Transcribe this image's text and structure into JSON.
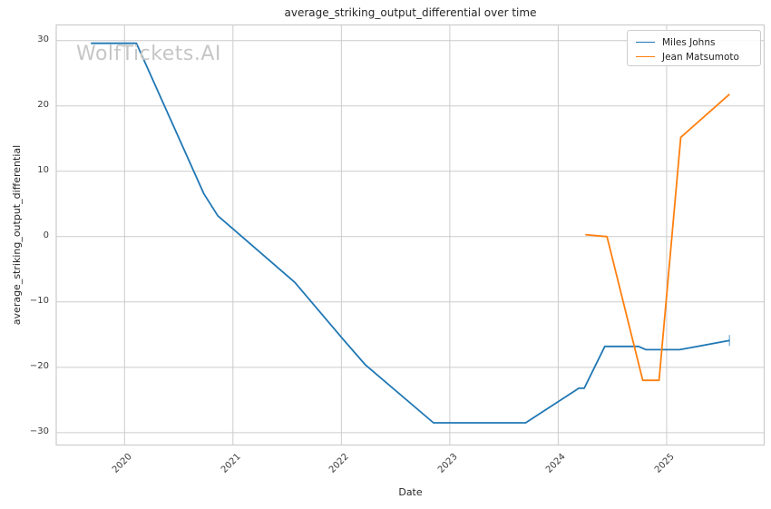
{
  "page": {
    "watermark": "WolfTickets.AI"
  },
  "chart_data": {
    "type": "line",
    "title": "average_striking_output_differential over time",
    "xlabel": "Date",
    "ylabel": "average_striking_output_differential",
    "grid": true,
    "legend_position": "upper right",
    "xlim": [
      2019.37,
      2025.9
    ],
    "ylim": [
      -31.9,
      32.4
    ],
    "x_ticks": [
      {
        "value": 2020,
        "label": "2020"
      },
      {
        "value": 2021,
        "label": "2021"
      },
      {
        "value": 2022,
        "label": "2022"
      },
      {
        "value": 2023,
        "label": "2023"
      },
      {
        "value": 2024,
        "label": "2024"
      },
      {
        "value": 2025,
        "label": "2025"
      }
    ],
    "y_ticks": [
      {
        "value": 30,
        "label": "30"
      },
      {
        "value": 20,
        "label": "20"
      },
      {
        "value": 10,
        "label": "10"
      },
      {
        "value": 0,
        "label": "0"
      },
      {
        "value": -10,
        "label": "−10"
      },
      {
        "value": -20,
        "label": "−20"
      },
      {
        "value": -30,
        "label": "−30"
      }
    ],
    "series": [
      {
        "name": "Miles Johns",
        "color": "#1f77b4",
        "end_cap": true,
        "x": [
          2019.69,
          2020.11,
          2020.73,
          2020.86,
          2021.57,
          2022.01,
          2022.22,
          2022.85,
          2023.7,
          2024.19,
          2024.24,
          2024.43,
          2024.74,
          2024.81,
          2025.12,
          2025.58
        ],
        "y": [
          29.6,
          29.6,
          6.6,
          3.2,
          -7.0,
          -15.6,
          -19.6,
          -28.5,
          -28.5,
          -23.2,
          -23.2,
          -16.8,
          -16.8,
          -17.3,
          -17.3,
          -15.9
        ]
      },
      {
        "name": "Jean Matsumoto",
        "color": "#ff7f0e",
        "end_cap": false,
        "x": [
          2024.25,
          2024.45,
          2024.78,
          2024.93,
          2025.13,
          2025.58
        ],
        "y": [
          0.3,
          0.0,
          -22.0,
          -22.0,
          15.2,
          21.8
        ]
      }
    ]
  }
}
